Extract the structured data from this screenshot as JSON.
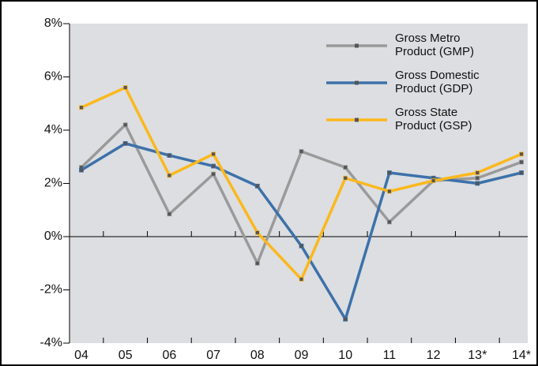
{
  "chart_data": {
    "type": "line",
    "categories": [
      "04",
      "05",
      "06",
      "07",
      "08",
      "09",
      "10",
      "11",
      "12",
      "13*",
      "14*"
    ],
    "series": [
      {
        "name": "Gross Metro Product (GMP)",
        "color": "#9a9a9a",
        "values": [
          2.6,
          4.2,
          0.85,
          2.35,
          -1.0,
          3.2,
          2.6,
          0.55,
          2.1,
          2.2,
          2.8
        ]
      },
      {
        "name": "Gross Domestic Product (GDP)",
        "color": "#3d71a9",
        "values": [
          2.5,
          3.5,
          3.05,
          2.65,
          1.9,
          -0.35,
          -3.1,
          2.4,
          2.2,
          2.0,
          2.4
        ]
      },
      {
        "name": "Gross State Product (GSP)",
        "color": "#fbb81c",
        "values": [
          4.85,
          5.6,
          2.3,
          3.1,
          0.15,
          -1.6,
          2.2,
          1.7,
          2.1,
          2.4,
          3.1
        ]
      }
    ],
    "ylim": [
      -4,
      8
    ],
    "yticks": [
      {
        "value": -4,
        "label": "-4%"
      },
      {
        "value": -2,
        "label": "-2%"
      },
      {
        "value": 0,
        "label": "0%"
      },
      {
        "value": 2,
        "label": "2%"
      },
      {
        "value": 4,
        "label": "4%"
      },
      {
        "value": 6,
        "label": "6%"
      },
      {
        "value": 8,
        "label": "8%"
      }
    ],
    "grid": false
  }
}
